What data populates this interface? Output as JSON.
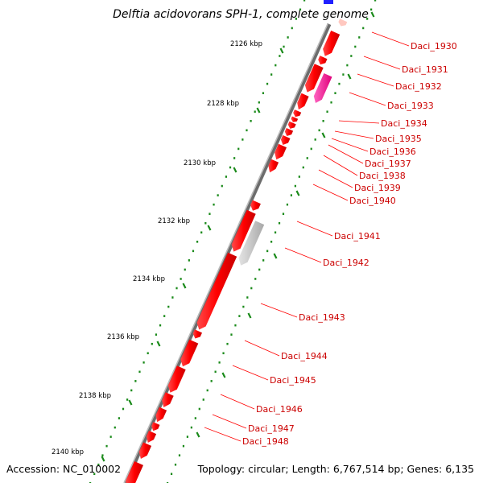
{
  "title": "Delftia acidovorans SPH-1, complete genome",
  "accession_label": "Accession: NC_010002",
  "summary_label": "Topology: circular; Length: 6,767,514 bp; Genes: 6,135",
  "scale_labels": [
    "2126 kbp",
    "2128 kbp",
    "2130 kbp",
    "2132 kbp",
    "2134 kbp",
    "2136 kbp",
    "2138 kbp",
    "2140 kbp"
  ],
  "gene_labels": [
    "Daci_1930",
    "Daci_1931",
    "Daci_1932",
    "Daci_1933",
    "Daci_1934",
    "Daci_1935",
    "Daci_1936",
    "Daci_1937",
    "Daci_1938",
    "Daci_1939",
    "Daci_1940",
    "Daci_1941",
    "Daci_1942",
    "Daci_1943",
    "Daci_1944",
    "Daci_1945",
    "Daci_1946",
    "Daci_1947",
    "Daci_1948"
  ],
  "colors": {
    "backbone": "#888888",
    "gene_forward": "#ff0000",
    "gene_highlight": "#ff2a9a",
    "gene_pseudo": "#c8c8c8",
    "gene_blue": "#2020ff",
    "gene_pale": "#ffc8c0",
    "label_text": "#cc0000",
    "leader_line": "#ff0000",
    "tick": "#1a8a1a"
  }
}
